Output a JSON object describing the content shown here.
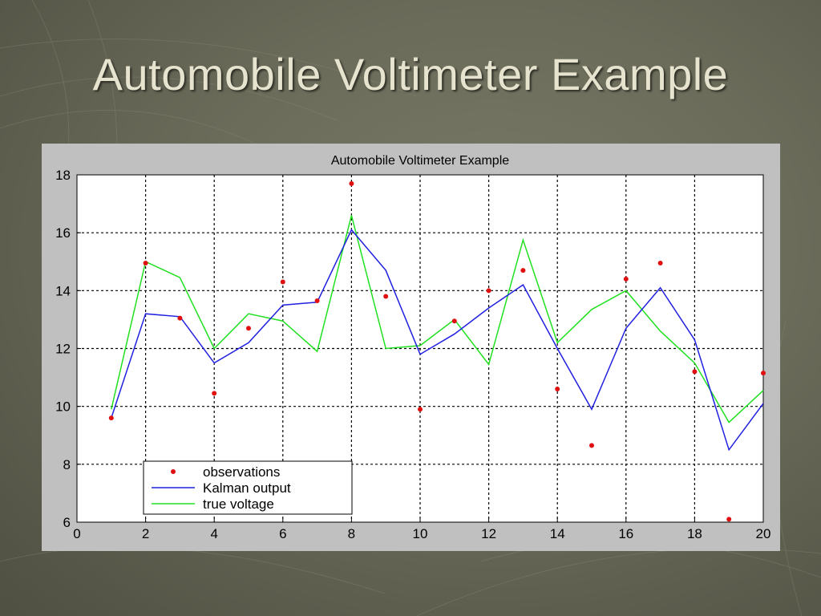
{
  "slide": {
    "title": "Automobile Voltimeter Example"
  },
  "colors": {
    "background": "#6b6b5a",
    "title_text": "#e6e3cf",
    "figure_bg": "#c0c0c0",
    "plot_bg": "#ffffff",
    "observations": "#e01010",
    "kalman": "#2020e0",
    "true_voltage": "#20e020"
  },
  "chart_data": {
    "type": "line",
    "title": "Automobile Voltimeter Example",
    "xlabel": "",
    "ylabel": "",
    "xlim": [
      0,
      20
    ],
    "ylim": [
      6,
      18
    ],
    "xticks": [
      0,
      2,
      4,
      6,
      8,
      10,
      12,
      14,
      16,
      18,
      20
    ],
    "yticks": [
      6,
      8,
      10,
      12,
      14,
      16,
      18
    ],
    "grid": true,
    "legend_position": "bottom-left",
    "series": [
      {
        "name": "observations",
        "style": "markers",
        "color": "#e01010",
        "x": [
          1,
          2,
          3,
          4,
          5,
          6,
          7,
          8,
          9,
          10,
          11,
          12,
          13,
          14,
          15,
          16,
          17,
          18,
          19,
          20
        ],
        "y": [
          9.6,
          14.95,
          13.05,
          10.45,
          12.7,
          14.3,
          13.65,
          17.7,
          13.8,
          9.9,
          12.95,
          14.0,
          14.7,
          10.6,
          8.65,
          14.4,
          14.95,
          11.2,
          6.1,
          11.15
        ]
      },
      {
        "name": "Kalman output",
        "style": "line",
        "color": "#2020e0",
        "x": [
          1,
          2,
          3,
          4,
          5,
          6,
          7,
          8,
          9,
          10,
          11,
          12,
          13,
          14,
          15,
          16,
          17,
          18,
          19,
          20
        ],
        "y": [
          9.6,
          13.2,
          13.1,
          11.5,
          12.2,
          13.5,
          13.6,
          16.1,
          14.7,
          11.8,
          12.5,
          13.4,
          14.2,
          12.0,
          9.9,
          12.7,
          14.1,
          12.3,
          8.5,
          10.1
        ]
      },
      {
        "name": "true voltage",
        "style": "line",
        "color": "#20e020",
        "x": [
          1,
          2,
          3,
          4,
          5,
          6,
          7,
          8,
          9,
          10,
          11,
          12,
          13,
          14,
          15,
          16,
          17,
          18,
          19,
          20
        ],
        "y": [
          9.9,
          15.0,
          14.45,
          12.0,
          13.2,
          12.95,
          11.9,
          16.6,
          12.0,
          12.1,
          13.0,
          11.45,
          15.75,
          12.2,
          13.35,
          14.0,
          12.6,
          11.5,
          9.45,
          10.55
        ]
      }
    ]
  }
}
